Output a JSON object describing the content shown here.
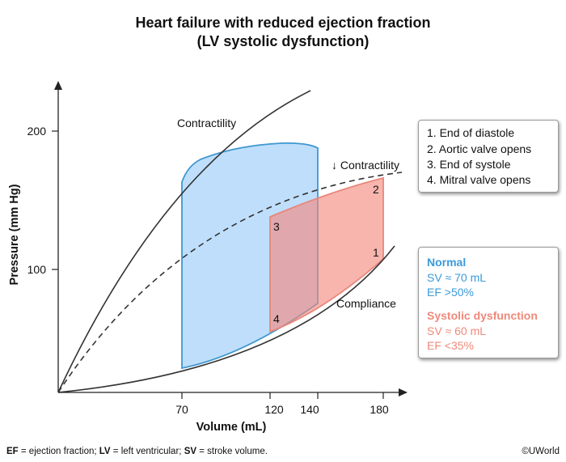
{
  "title": {
    "line1": "Heart failure with reduced ejection fraction",
    "line2": "(LV systolic dysfunction)"
  },
  "axes": {
    "xlabel": "Volume (mL)",
    "ylabel": "Pressure (mm Hg)",
    "x_ticks": [
      "70",
      "120",
      "140",
      "180"
    ],
    "y_ticks": [
      "100",
      "200"
    ]
  },
  "curve_labels": {
    "contractility": "Contractility",
    "reduced_contractility": "↓ Contractility",
    "compliance": "Compliance"
  },
  "point_labels": [
    "1",
    "2",
    "3",
    "4"
  ],
  "steps": [
    "1. End of diastole",
    "2. Aortic valve opens",
    "3. End of systole",
    "4. Mitral valve opens"
  ],
  "legend": {
    "normal": {
      "title": "Normal",
      "sv": "SV ≈ 70 mL",
      "ef": "EF >50%",
      "color": "#3a9ad9"
    },
    "systolic": {
      "title": "Systolic dysfunction",
      "sv": "SV ≈ 60 mL",
      "ef": "EF <35%",
      "color": "#f0897a"
    }
  },
  "footnote": {
    "ef_abbr": "EF",
    "ef_def": " = ejection fraction; ",
    "lv_abbr": "LV",
    "lv_def": " = left ventricular; ",
    "sv_abbr": "SV",
    "sv_def": " = stroke volume."
  },
  "credit": "©UWorld",
  "colors": {
    "normal_fill": "#bcdcfb",
    "normal_stroke": "#3f97cf",
    "systolic_fill": "#f7aca2",
    "systolic_stroke": "#e8867a",
    "curve": "#333333"
  }
}
